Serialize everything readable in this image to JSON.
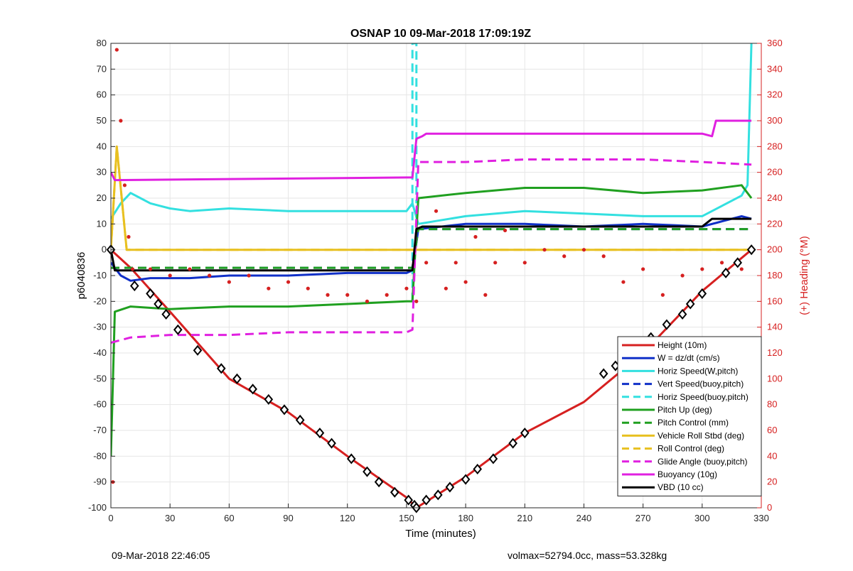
{
  "chart_data": {
    "type": "line",
    "title": "OSNAP 10 09-Mar-2018 17:09:19Z",
    "xlabel": "Time (minutes)",
    "ylabel_left": "p6040836",
    "ylabel_right": "(+) Heading (°M)",
    "xlim": [
      0,
      330
    ],
    "ylim_left": [
      -100,
      80
    ],
    "ylim_right": [
      0,
      360
    ],
    "xticks": [
      0,
      30,
      60,
      90,
      120,
      150,
      180,
      210,
      240,
      270,
      300,
      330
    ],
    "yticks_left": [
      -100,
      -90,
      -80,
      -70,
      -60,
      -50,
      -40,
      -30,
      -20,
      -10,
      0,
      10,
      20,
      30,
      40,
      50,
      60,
      70,
      80
    ],
    "yticks_right": [
      0,
      20,
      40,
      60,
      80,
      100,
      120,
      140,
      160,
      180,
      200,
      220,
      240,
      260,
      280,
      300,
      320,
      340,
      360
    ],
    "grid": true,
    "legend_position": "bottom-right",
    "series": [
      {
        "name": "Height (10m)",
        "color": "#d62020",
        "style": "solid",
        "x": [
          0,
          10,
          30,
          60,
          90,
          120,
          150,
          155,
          180,
          210,
          240,
          270,
          300,
          325
        ],
        "y": [
          0,
          -7,
          -24,
          -50,
          -63,
          -80,
          -96,
          -100,
          -88,
          -71,
          -59,
          -40,
          -16,
          0
        ]
      },
      {
        "name": "W = dz/dt (cm/s)",
        "color": "#1030c8",
        "style": "solid",
        "x": [
          0,
          5,
          10,
          20,
          40,
          60,
          90,
          120,
          150,
          153,
          156,
          180,
          210,
          240,
          270,
          300,
          320,
          325
        ],
        "y": [
          -5,
          -10,
          -12,
          -11,
          -11,
          -10,
          -10,
          -9,
          -9,
          -8,
          8,
          10,
          10,
          9,
          10,
          9,
          13,
          12
        ]
      },
      {
        "name": "Horiz Speed(W,pitch)",
        "color": "#33e0e0",
        "style": "solid",
        "x": [
          0,
          5,
          10,
          15,
          20,
          25,
          30,
          40,
          60,
          90,
          120,
          150,
          153,
          156,
          180,
          210,
          240,
          270,
          300,
          320,
          323,
          325
        ],
        "y": [
          12,
          18,
          22,
          20,
          18,
          17,
          16,
          15,
          16,
          15,
          15,
          15,
          18,
          10,
          13,
          15,
          14,
          13,
          13,
          21,
          25,
          80
        ]
      },
      {
        "name": "Vert Speed(buoy,pitch)",
        "color": "#1030c8",
        "style": "dashed",
        "x": [
          0,
          150,
          153,
          156,
          325
        ],
        "y": [
          -7,
          -7,
          -7,
          8,
          8
        ]
      },
      {
        "name": "Horiz Speed(buoy,pitch)",
        "color": "#33e0e0",
        "style": "dashed",
        "x": [
          153,
          153,
          155,
          155
        ],
        "y": [
          -20,
          80,
          80,
          18
        ]
      },
      {
        "name": "Pitch Up (deg)",
        "color": "#20a020",
        "style": "solid",
        "x": [
          0,
          2,
          10,
          30,
          60,
          90,
          120,
          150,
          153,
          156,
          180,
          210,
          240,
          270,
          300,
          320,
          325
        ],
        "y": [
          -80,
          -24,
          -22,
          -23,
          -22,
          -22,
          -21,
          -20,
          -20,
          20,
          22,
          24,
          24,
          22,
          23,
          25,
          20
        ]
      },
      {
        "name": "Pitch Control (mm)",
        "color": "#20a020",
        "style": "dashed",
        "x": [
          0,
          150,
          153,
          156,
          325
        ],
        "y": [
          -7,
          -7,
          -7,
          8,
          8
        ]
      },
      {
        "name": "Vehicle Roll Stbd (deg)",
        "color": "#e8c020",
        "style": "solid",
        "x": [
          0,
          3,
          8,
          20,
          60,
          100,
          150,
          153,
          156,
          200,
          250,
          300,
          325
        ],
        "y": [
          0,
          40,
          0,
          0,
          0,
          0,
          0,
          0,
          0,
          0,
          0,
          0,
          0
        ]
      },
      {
        "name": "Roll Control (deg)",
        "color": "#e8c020",
        "style": "dashed",
        "x": [
          0,
          3,
          8,
          20,
          60,
          100,
          150,
          156,
          200,
          250,
          300,
          325
        ],
        "y": [
          0,
          40,
          0,
          0,
          0,
          0,
          0,
          0,
          0,
          0,
          0,
          0
        ]
      },
      {
        "name": "Glide Angle (buoy,pitch)",
        "color": "#e020e0",
        "style": "dashed",
        "x": [
          0,
          10,
          30,
          60,
          90,
          120,
          150,
          153,
          156,
          180,
          210,
          240,
          270,
          300,
          325
        ],
        "y": [
          -36,
          -34,
          -33,
          -33,
          -32,
          -32,
          -32,
          -31,
          34,
          34,
          35,
          35,
          35,
          34,
          33
        ]
      },
      {
        "name": "Buoyancy (10g)",
        "color": "#e020e0",
        "style": "solid",
        "x": [
          0,
          2,
          150,
          153,
          155,
          158,
          160,
          300,
          305,
          307,
          325
        ],
        "y": [
          30,
          27,
          28,
          28,
          43,
          44,
          45,
          45,
          44,
          50,
          50
        ]
      },
      {
        "name": "VBD (10 cc)",
        "color": "#000000",
        "style": "solid",
        "x": [
          0,
          2,
          150,
          153,
          155,
          158,
          160,
          300,
          305,
          325
        ],
        "y": [
          0,
          -8,
          -8,
          -8,
          8,
          9,
          9,
          9,
          12,
          12
        ]
      }
    ],
    "heading_points_right": {
      "name": "Heading",
      "color": "#d62020",
      "x": [
        1,
        3,
        5,
        7,
        9,
        11,
        20,
        30,
        40,
        50,
        60,
        70,
        80,
        90,
        100,
        110,
        120,
        130,
        140,
        150,
        155,
        160,
        165,
        170,
        175,
        180,
        185,
        190,
        195,
        200,
        210,
        220,
        230,
        240,
        250,
        260,
        270,
        280,
        290,
        300,
        310,
        320
      ],
      "y": [
        20,
        355,
        300,
        250,
        210,
        185,
        185,
        180,
        185,
        180,
        175,
        180,
        170,
        175,
        170,
        165,
        165,
        160,
        165,
        170,
        160,
        190,
        230,
        170,
        190,
        175,
        210,
        165,
        190,
        215,
        190,
        200,
        195,
        200,
        195,
        175,
        185,
        165,
        180,
        185,
        190,
        185
      ]
    },
    "markers": {
      "name": "Height markers",
      "color": "#000000",
      "x": [
        0,
        12,
        20,
        24,
        28,
        34,
        44,
        56,
        64,
        72,
        80,
        88,
        96,
        106,
        112,
        122,
        130,
        136,
        144,
        151,
        154,
        155,
        160,
        166,
        172,
        180,
        186,
        194,
        204,
        210,
        250,
        256,
        262,
        268,
        274,
        282,
        290,
        294,
        300,
        312,
        318,
        325
      ],
      "y": [
        0,
        -14,
        -17,
        -21,
        -25,
        -31,
        -39,
        -46,
        -50,
        -54,
        -58,
        -62,
        -66,
        -71,
        -75,
        -81,
        -86,
        -90,
        -94,
        -97,
        -99,
        -100,
        -97,
        -95,
        -92,
        -89,
        -85,
        -81,
        -75,
        -71,
        -48,
        -45,
        -42,
        -38,
        -34,
        -29,
        -25,
        -21,
        -17,
        -9,
        -5,
        0
      ]
    }
  },
  "footer": {
    "left": "09-Mar-2018 22:46:05",
    "right": "volmax=52794.0cc, mass=53.328kg"
  }
}
